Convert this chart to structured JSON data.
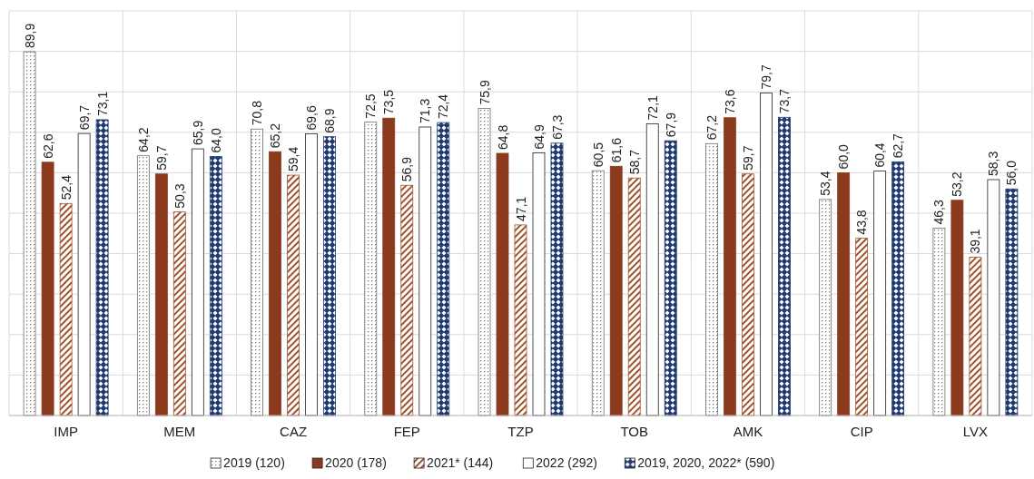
{
  "chart_data": {
    "type": "bar",
    "categories": [
      "IMP",
      "MEM",
      "CAZ",
      "FEP",
      "TZP",
      "TOB",
      "AMK",
      "CIP",
      "LVX"
    ],
    "series": [
      {
        "name": "2019 (120)",
        "color": "#6e6e6e",
        "values": [
          89.9,
          64.2,
          70.8,
          72.5,
          75.9,
          60.5,
          67.2,
          53.4,
          46.3
        ],
        "value_labels": [
          "89,9",
          "64,2",
          "70,8",
          "72,5",
          "75,9",
          "60,5",
          "67,2",
          "53,4",
          "46,3"
        ]
      },
      {
        "name": "2020 (178)",
        "color": "#8b3a1e",
        "values": [
          62.6,
          59.7,
          65.2,
          73.5,
          64.8,
          61.6,
          73.6,
          60.0,
          53.2
        ],
        "value_labels": [
          "62,6",
          "59,7",
          "65,2",
          "73,5",
          "64,8",
          "61,6",
          "73,6",
          "60,0",
          "53,2"
        ]
      },
      {
        "name": "2021* (144)",
        "color": "#a0522d",
        "values": [
          52.4,
          50.3,
          59.4,
          56.9,
          47.1,
          58.7,
          59.7,
          43.8,
          39.1
        ],
        "value_labels": [
          "52,4",
          "50,3",
          "59,4",
          "56,9",
          "47,1",
          "58,7",
          "59,7",
          "43,8",
          "39,1"
        ]
      },
      {
        "name": "2022 (292)",
        "color": "#ffffff",
        "values": [
          69.7,
          65.9,
          69.6,
          71.3,
          64.9,
          72.1,
          79.7,
          60.4,
          58.3
        ],
        "value_labels": [
          "69,7",
          "65,9",
          "69,6",
          "71,3",
          "64,9",
          "72,1",
          "79,7",
          "60,4",
          "58,3"
        ]
      },
      {
        "name": "2019, 2020, 2022* (590)",
        "color": "#1f3a6e",
        "values": [
          73.1,
          64.0,
          68.9,
          72.4,
          67.3,
          67.9,
          73.7,
          62.7,
          56.0
        ],
        "value_labels": [
          "73,1",
          "64,0",
          "68,9",
          "72,4",
          "67,3",
          "67,9",
          "73,7",
          "62,7",
          "56,0"
        ]
      }
    ],
    "ylim": [
      0,
      100
    ],
    "yticks": [
      {
        "value": 0,
        "label": null
      },
      {
        "value": 10,
        "label": null
      },
      {
        "value": 20,
        "label": null
      },
      {
        "value": 30,
        "label": null
      },
      {
        "value": 40,
        "label": null
      },
      {
        "value": 50,
        "label": null
      },
      {
        "value": 60,
        "label": null
      },
      {
        "value": 70,
        "label": null
      },
      {
        "value": 80,
        "label": null
      },
      {
        "value": 90,
        "label": null
      },
      {
        "value": 100,
        "label": null
      }
    ],
    "tick_labels": "x",
    "grid": true,
    "legend": "bottom"
  }
}
